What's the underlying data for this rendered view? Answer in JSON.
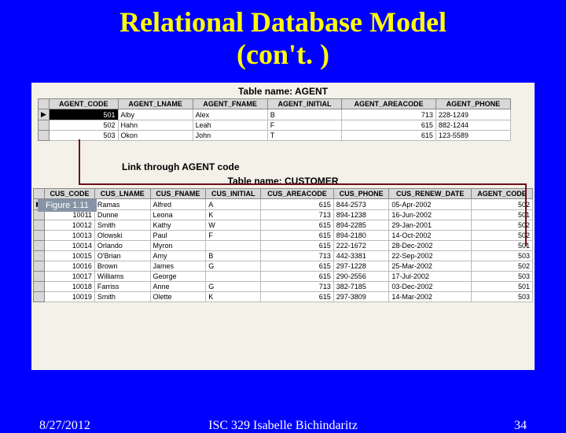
{
  "slide": {
    "title_line1": "Relational Database Model",
    "title_line2": "(con't. )",
    "background_color": "#0000ff",
    "title_color": "#ffff00"
  },
  "figure": {
    "label": "Figure 1.11",
    "background_color": "#f4f1e8",
    "link_text": "Link through AGENT code",
    "agent_table": {
      "caption": "Table name: AGENT",
      "columns": [
        "AGENT_CODE",
        "AGENT_LNAME",
        "AGENT_FNAME",
        "AGENT_INITIAL",
        "AGENT_AREACODE",
        "AGENT_PHONE"
      ],
      "pointer_row": 0,
      "highlight": {
        "row": 0,
        "col": 0
      },
      "rows": [
        [
          "501",
          "Alby",
          "Alex",
          "B",
          "713",
          "228-1249"
        ],
        [
          "502",
          "Hahn",
          "Leah",
          "F",
          "615",
          "882-1244"
        ],
        [
          "503",
          "Okon",
          "John",
          "T",
          "615",
          "123-5589"
        ]
      ]
    },
    "customer_table": {
      "caption": "Table name: CUSTOMER",
      "columns": [
        "CUS_CODE",
        "CUS_LNAME",
        "CUS_FNAME",
        "CUS_INITIAL",
        "CUS_AREACODE",
        "CUS_PHONE",
        "CUS_RENEW_DATE",
        "AGENT_CODE"
      ],
      "pointer_row": 0,
      "highlight": {
        "row": 0,
        "col": 0
      },
      "rows": [
        [
          "10010",
          "Ramas",
          "Alfred",
          "A",
          "615",
          "844-2573",
          "05-Apr-2002",
          "502"
        ],
        [
          "10011",
          "Dunne",
          "Leona",
          "K",
          "713",
          "894-1238",
          "16-Jun-2002",
          "501"
        ],
        [
          "10012",
          "Smith",
          "Kathy",
          "W",
          "615",
          "894-2285",
          "29-Jan-2001",
          "502"
        ],
        [
          "10013",
          "Olowski",
          "Paul",
          "F",
          "615",
          "894-2180",
          "14-Oct-2002",
          "502"
        ],
        [
          "10014",
          "Orlando",
          "Myron",
          "",
          "615",
          "222-1672",
          "28-Dec-2002",
          "501"
        ],
        [
          "10015",
          "O'Brian",
          "Amy",
          "B",
          "713",
          "442-3381",
          "22-Sep-2002",
          "503"
        ],
        [
          "10016",
          "Brown",
          "James",
          "G",
          "615",
          "297-1228",
          "25-Mar-2002",
          "502"
        ],
        [
          "10017",
          "Williams",
          "George",
          "",
          "615",
          "290-2556",
          "17-Jul-2002",
          "503"
        ],
        [
          "10018",
          "Farriss",
          "Anne",
          "G",
          "713",
          "382-7185",
          "03-Dec-2002",
          "501"
        ],
        [
          "10019",
          "Smith",
          "Olette",
          "K",
          "615",
          "297-3809",
          "14-Mar-2002",
          "503"
        ]
      ]
    }
  },
  "footer": {
    "date": "8/27/2012",
    "course": "ISC 329 Isabelle Bichindaritz",
    "page": "34"
  }
}
